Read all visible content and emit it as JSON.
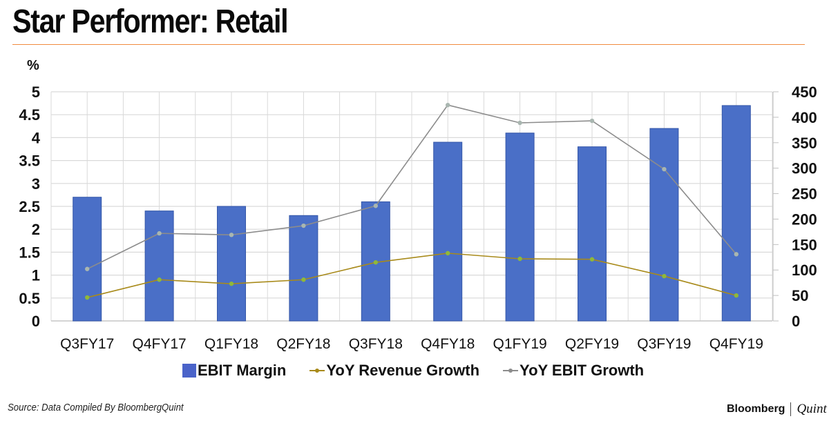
{
  "header": {
    "title": "Star Performer: Retail",
    "unit_label": "%"
  },
  "footer": {
    "source": "Source: Data Compiled By BloombergQuint",
    "brand_left": "Bloomberg",
    "brand_right": "Quint"
  },
  "colors": {
    "bar": "#4a6fc7",
    "revenue_line": "#a88a1a",
    "revenue_marker": "#8fb83a",
    "ebit_line": "#8c8c8c",
    "ebit_marker": "#a9b6b0",
    "grid": "#d9d9d9",
    "title_rule": "#f08a3e"
  },
  "chart_data": {
    "type": "bar",
    "title": "Star Performer: Retail",
    "xlabel": "",
    "ylabel": "%",
    "categories": [
      "Q3FY17",
      "Q4FY17",
      "Q1FY18",
      "Q2FY18",
      "Q3FY18",
      "Q4FY18",
      "Q1FY19",
      "Q2FY19",
      "Q3FY19",
      "Q4FY19"
    ],
    "series": [
      {
        "name": "EBIT Margin",
        "type": "bar",
        "axis": "left",
        "values": [
          2.7,
          2.4,
          2.5,
          2.3,
          2.6,
          3.9,
          4.1,
          3.8,
          4.2,
          4.7
        ]
      },
      {
        "name": "YoY Revenue Growth",
        "type": "line",
        "axis": "right",
        "values": [
          46,
          81,
          73,
          81,
          115,
          133,
          122,
          121,
          88,
          50
        ]
      },
      {
        "name": "YoY EBIT Growth",
        "type": "line",
        "axis": "right",
        "values": [
          102,
          172,
          169,
          187,
          226,
          424,
          389,
          393,
          298,
          131
        ]
      }
    ],
    "ylim": [
      0,
      5
    ],
    "y_ticks": [
      "0",
      "0.5",
      "1",
      "1.5",
      "2",
      "2.5",
      "3",
      "3.5",
      "4",
      "4.5",
      "5"
    ],
    "y2lim": [
      0,
      450
    ],
    "y2_ticks": [
      "0",
      "50",
      "100",
      "150",
      "200",
      "250",
      "300",
      "350",
      "400",
      "450"
    ],
    "grid": true,
    "legend_position": "bottom"
  },
  "legend": [
    {
      "label": "EBIT Margin",
      "kind": "bar"
    },
    {
      "label": "YoY Revenue Growth",
      "kind": "line"
    },
    {
      "label": "YoY EBIT Growth",
      "kind": "line"
    }
  ]
}
